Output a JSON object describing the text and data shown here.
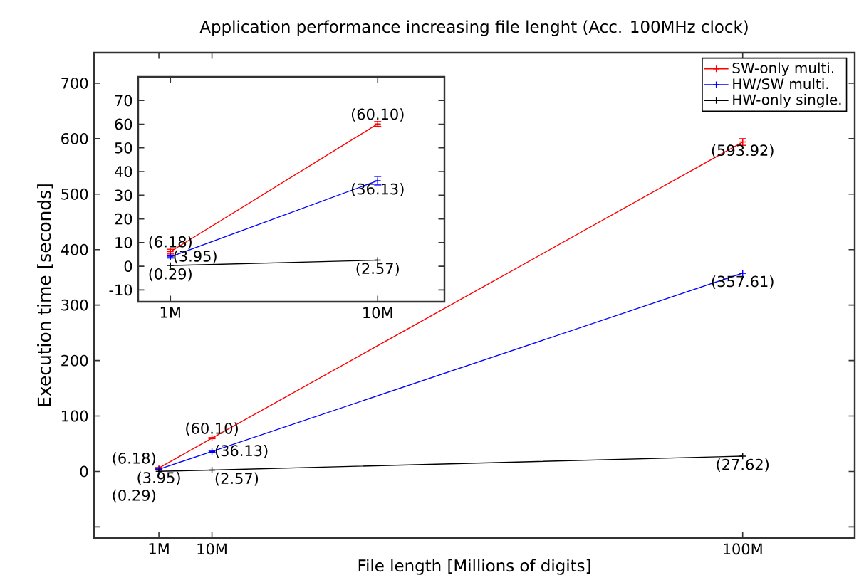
{
  "chart_data": [
    {
      "type": "line",
      "title": "Application performance increasing file lenght (Acc. 100MHz clock)",
      "xlabel": "File length [Millions of digits]",
      "ylabel": "Execution time [seconds]",
      "x": [
        1,
        10,
        100
      ],
      "xlim": [
        -10,
        119
      ],
      "ylim": [
        -120,
        755
      ],
      "xticks": [
        {
          "value": 1,
          "label": "1M"
        },
        {
          "value": 10,
          "label": "10M"
        },
        {
          "value": 100,
          "label": "100M"
        }
      ],
      "yticks": [
        {
          "value": -100,
          "label": null
        },
        0,
        100,
        200,
        300,
        400,
        500,
        600,
        700
      ],
      "marker": "cross",
      "legend": "top right",
      "series": [
        {
          "name": "SW-only multi.",
          "color": "#ff0000",
          "values": [
            6.18,
            60.1,
            593.92
          ],
          "errors": [
            1,
            1,
            6
          ],
          "value_labels": [
            "(6.18)",
            "(60.10)",
            "(593.92)"
          ]
        },
        {
          "name": "HW/SW multi.",
          "color": "#0000ff",
          "values": [
            3.95,
            36.13,
            357.61
          ],
          "errors": [
            0.5,
            1.8,
            null
          ],
          "value_labels": [
            "(3.95)",
            "(36.13)",
            "(357.61)"
          ]
        },
        {
          "name": "HW-only single.",
          "color": "#000000",
          "values": [
            0.29,
            2.57,
            27.62
          ],
          "value_labels": [
            "(0.29)",
            "(2.57)",
            "(27.62)"
          ]
        }
      ]
    },
    {
      "type": "line",
      "x": [
        1,
        10
      ],
      "xlim": [
        -0.4,
        12.9
      ],
      "ylim": [
        -15,
        80
      ],
      "xticks": [
        {
          "value": 1,
          "label": "1M"
        },
        {
          "value": 10,
          "label": "10M"
        }
      ],
      "yticks": [
        -10,
        0,
        10,
        20,
        30,
        40,
        50,
        60,
        70
      ],
      "marker": "cross",
      "series": [
        {
          "color": "#ff0000",
          "values": [
            6.18,
            60.1
          ],
          "errors": [
            1,
            1
          ],
          "value_labels": [
            "(6.18)",
            "(60.10)"
          ]
        },
        {
          "color": "#0000ff",
          "values": [
            3.95,
            36.13
          ],
          "errors": [
            0.5,
            1.8
          ],
          "value_labels": [
            "(3.95)",
            "(36.13)"
          ]
        },
        {
          "color": "#000000",
          "values": [
            0.29,
            2.57
          ],
          "value_labels": [
            "(0.29)",
            "(2.57)"
          ]
        }
      ]
    }
  ]
}
